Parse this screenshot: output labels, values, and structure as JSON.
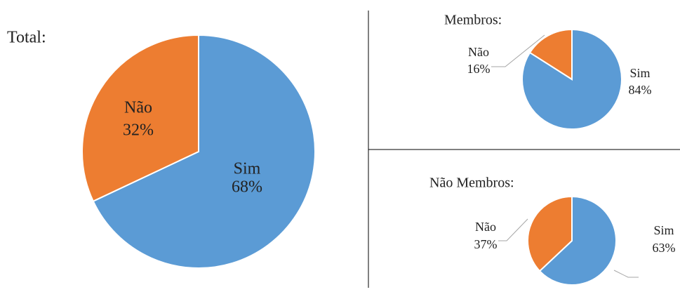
{
  "chart_data": [
    {
      "type": "pie",
      "title": "Total:",
      "categories": [
        "Sim",
        "Não"
      ],
      "values": [
        68,
        32
      ],
      "value_labels": [
        "68%",
        "32%"
      ],
      "colors": [
        "#5b9bd5",
        "#ed7d31"
      ]
    },
    {
      "type": "pie",
      "title": "Membros:",
      "categories": [
        "Sim",
        "Não"
      ],
      "values": [
        84,
        16
      ],
      "value_labels": [
        "84%",
        "16%"
      ],
      "colors": [
        "#5b9bd5",
        "#ed7d31"
      ]
    },
    {
      "type": "pie",
      "title": "Não Membros:",
      "categories": [
        "Sim",
        "Não"
      ],
      "values": [
        63,
        37
      ],
      "value_labels": [
        "63%",
        "37%"
      ],
      "colors": [
        "#5b9bd5",
        "#ed7d31"
      ]
    }
  ]
}
